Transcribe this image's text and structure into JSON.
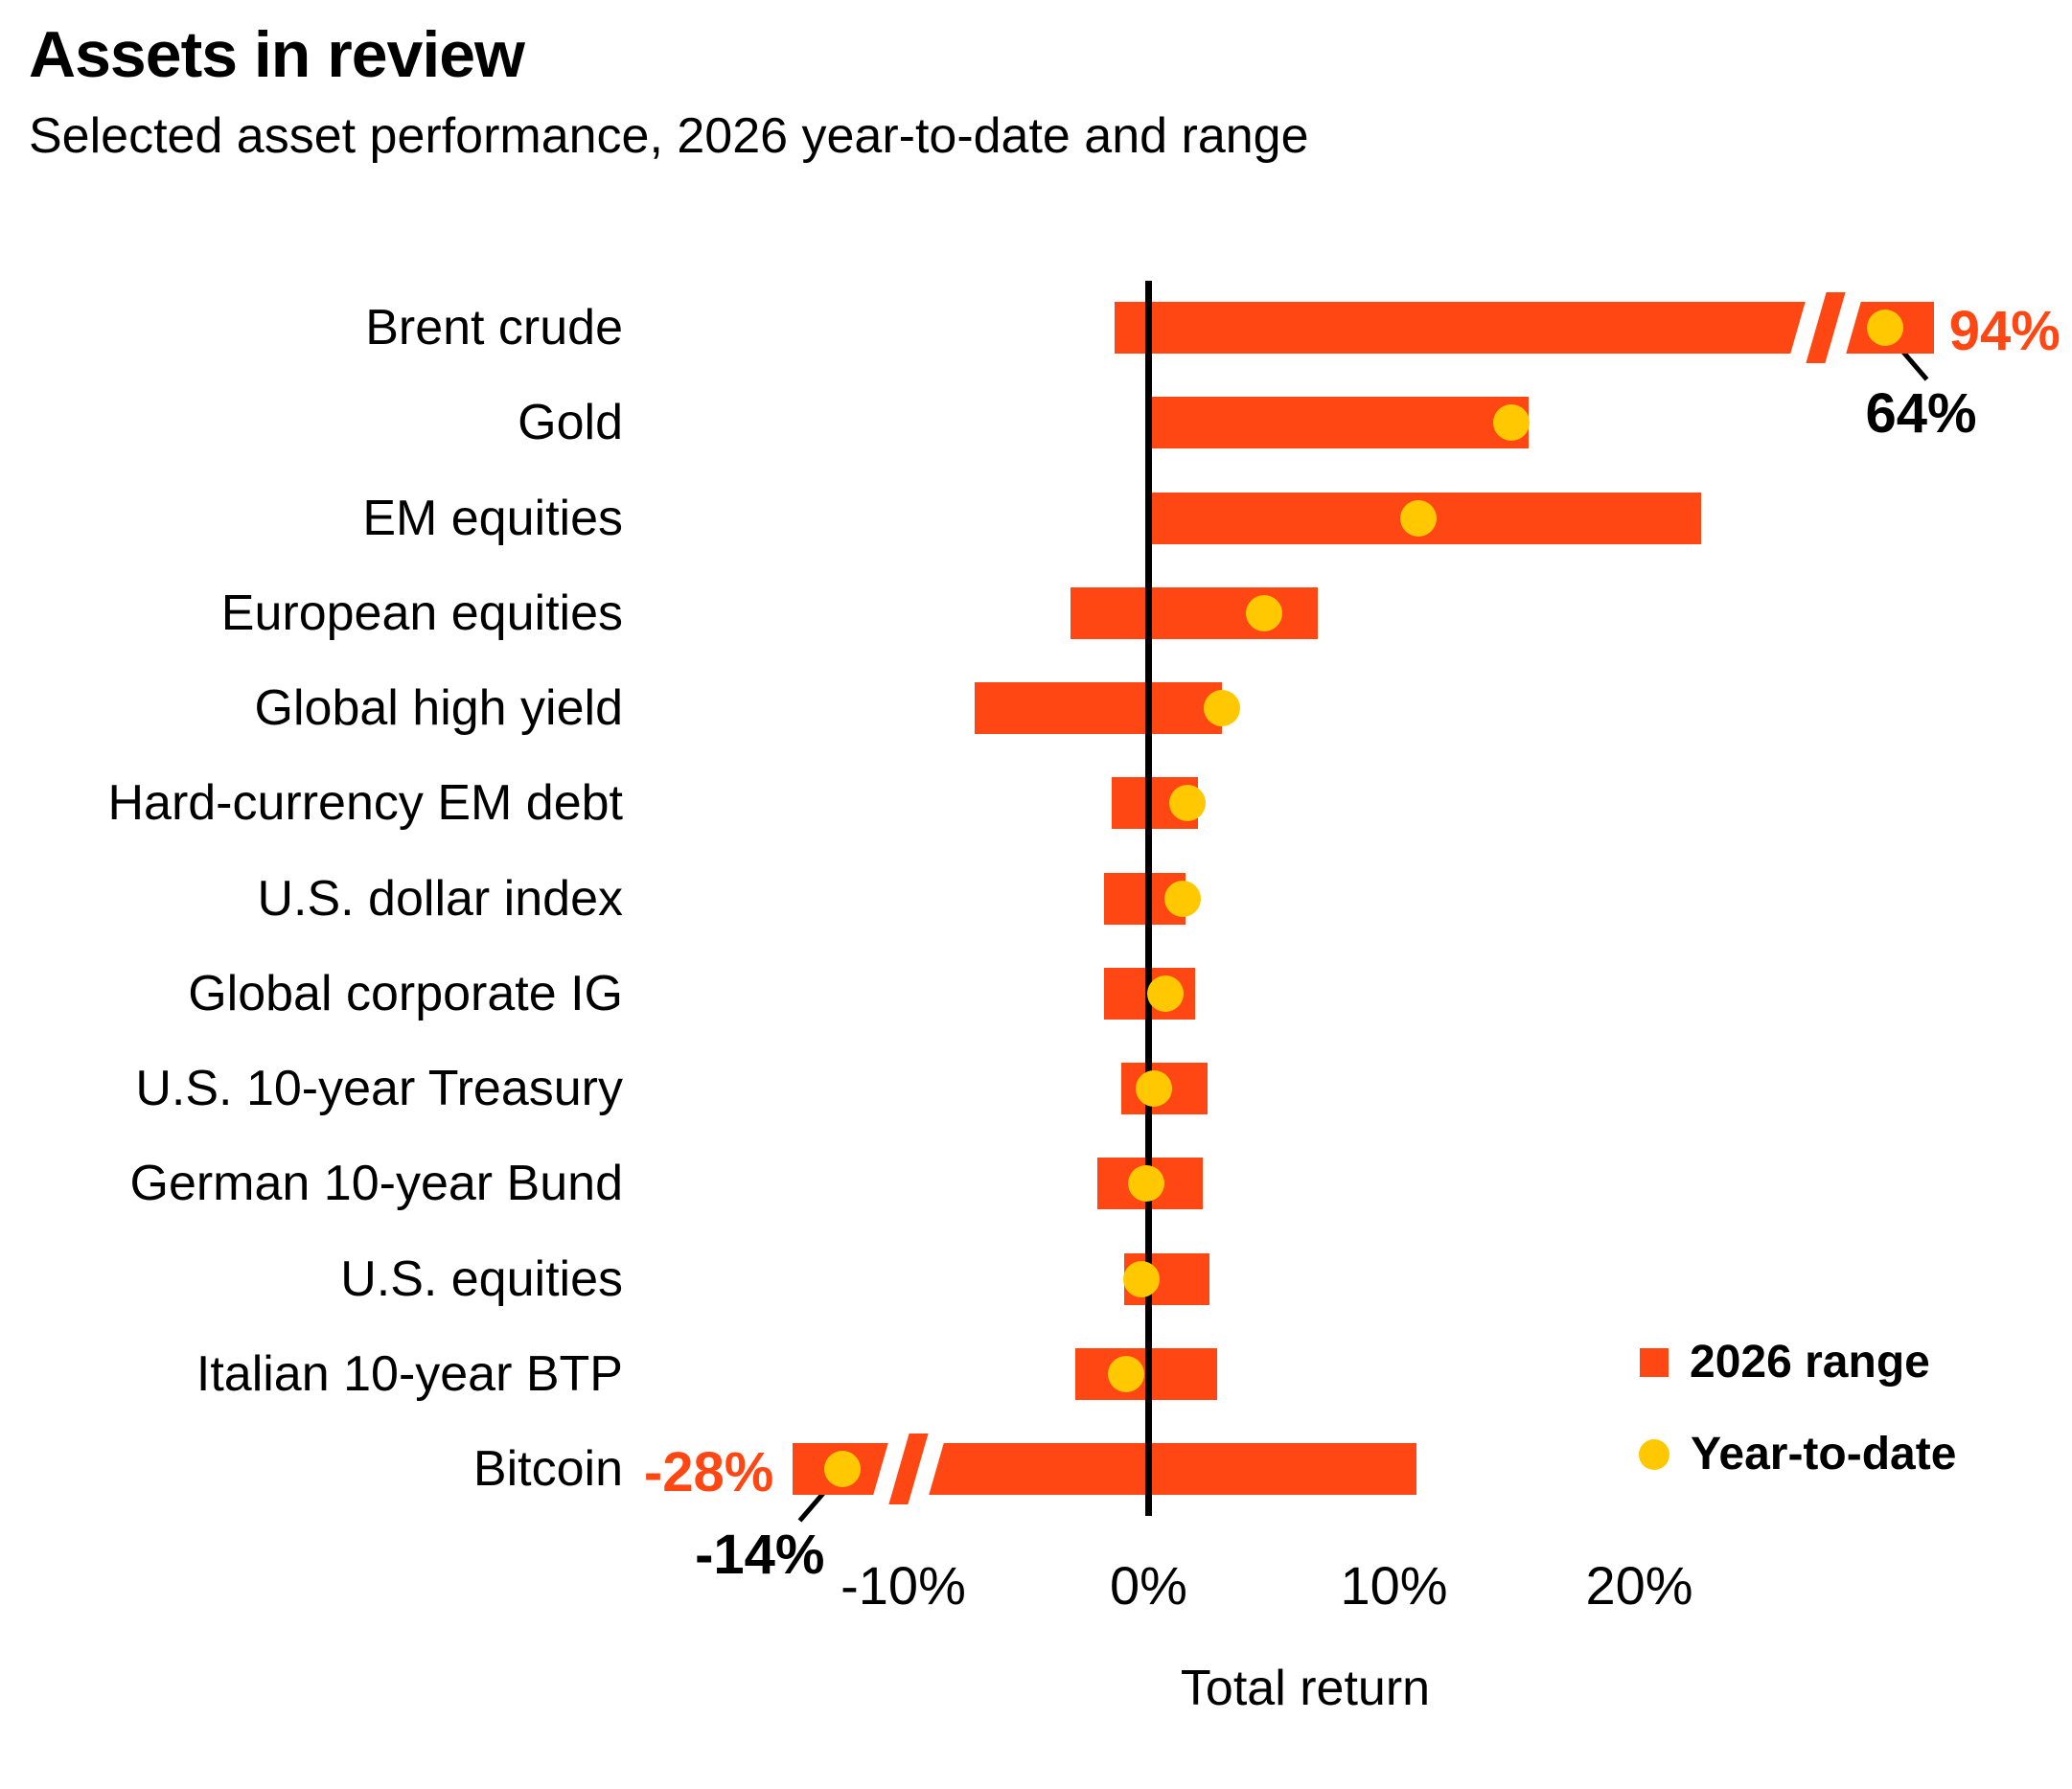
{
  "header": {
    "title": "Assets in review",
    "subtitle": "Selected asset performance, 2026 year-to-date and range"
  },
  "colors": {
    "range_bar": "#FF4713",
    "ytd_dot": "#FFC800",
    "text": "#000000",
    "background": "#FFFFFF"
  },
  "legend": {
    "range_label": "2026 range",
    "ytd_label": "Year-to-date",
    "position": "bottom-right"
  },
  "axis": {
    "tick_labels": [
      "-10%",
      "0%",
      "10%",
      "20%"
    ],
    "tick_values": [
      -10,
      0,
      10,
      20
    ],
    "xlabel": "Total return",
    "zero_line": true,
    "grid": false
  },
  "chart_data": {
    "type": "bar",
    "subtype": "horizontal-range-with-dot",
    "unit": "percent total return",
    "xlim_display": [
      -15.5,
      33
    ],
    "categories": [
      "Brent crude",
      "Gold",
      "EM equities",
      "European equities",
      "Global high yield",
      "Hard-currency EM debt",
      "U.S. dollar index",
      "Global corporate IG",
      "U.S. 10-year Treasury",
      "German 10-year Bund",
      "U.S. equities",
      "Italian 10-year BTP",
      "Bitcoin"
    ],
    "series": [
      {
        "name": "2026 range",
        "values": "see assets range_min/range_max"
      },
      {
        "name": "Year-to-date",
        "values": "see assets ytd"
      }
    ],
    "assets": [
      {
        "label": "Brent crude",
        "range_min": -1.4,
        "range_max": 94,
        "ytd": 64,
        "display": {
          "max": 32.0,
          "ytd": 30.0
        },
        "break_at": 27.6,
        "max_label": "94%",
        "ytd_label": "64%"
      },
      {
        "label": "Gold",
        "range_min": 0,
        "range_max": 15.5,
        "ytd": 14.8
      },
      {
        "label": "EM equities",
        "range_min": 0,
        "range_max": 22.5,
        "ytd": 11.0
      },
      {
        "label": "European equities",
        "range_min": -3.2,
        "range_max": 6.9,
        "ytd": 4.7
      },
      {
        "label": "Global high yield",
        "range_min": -7.1,
        "range_max": 3.0,
        "ytd": 3.0
      },
      {
        "label": "Hard-currency EM debt",
        "range_min": -1.5,
        "range_max": 2.0,
        "ytd": 1.6
      },
      {
        "label": "U.S. dollar index",
        "range_min": -1.8,
        "range_max": 1.5,
        "ytd": 1.4
      },
      {
        "label": "Global corporate IG",
        "range_min": -1.8,
        "range_max": 1.9,
        "ytd": 0.7
      },
      {
        "label": "U.S. 10-year Treasury",
        "range_min": -1.1,
        "range_max": 2.4,
        "ytd": 0.2
      },
      {
        "label": "German 10-year Bund",
        "range_min": -2.1,
        "range_max": 2.2,
        "ytd": -0.1
      },
      {
        "label": "U.S. equities",
        "range_min": -1.0,
        "range_max": 2.5,
        "ytd": -0.3
      },
      {
        "label": "Italian 10-year BTP",
        "range_min": -3.0,
        "range_max": 2.8,
        "ytd": -0.9
      },
      {
        "label": "Bitcoin",
        "range_min": -28,
        "range_max": 10.9,
        "ytd": -14,
        "display": {
          "min": -14.5,
          "ytd": -12.5
        },
        "break_at": -9.8,
        "min_label": "-28%",
        "ytd_label": "-14%"
      }
    ]
  }
}
